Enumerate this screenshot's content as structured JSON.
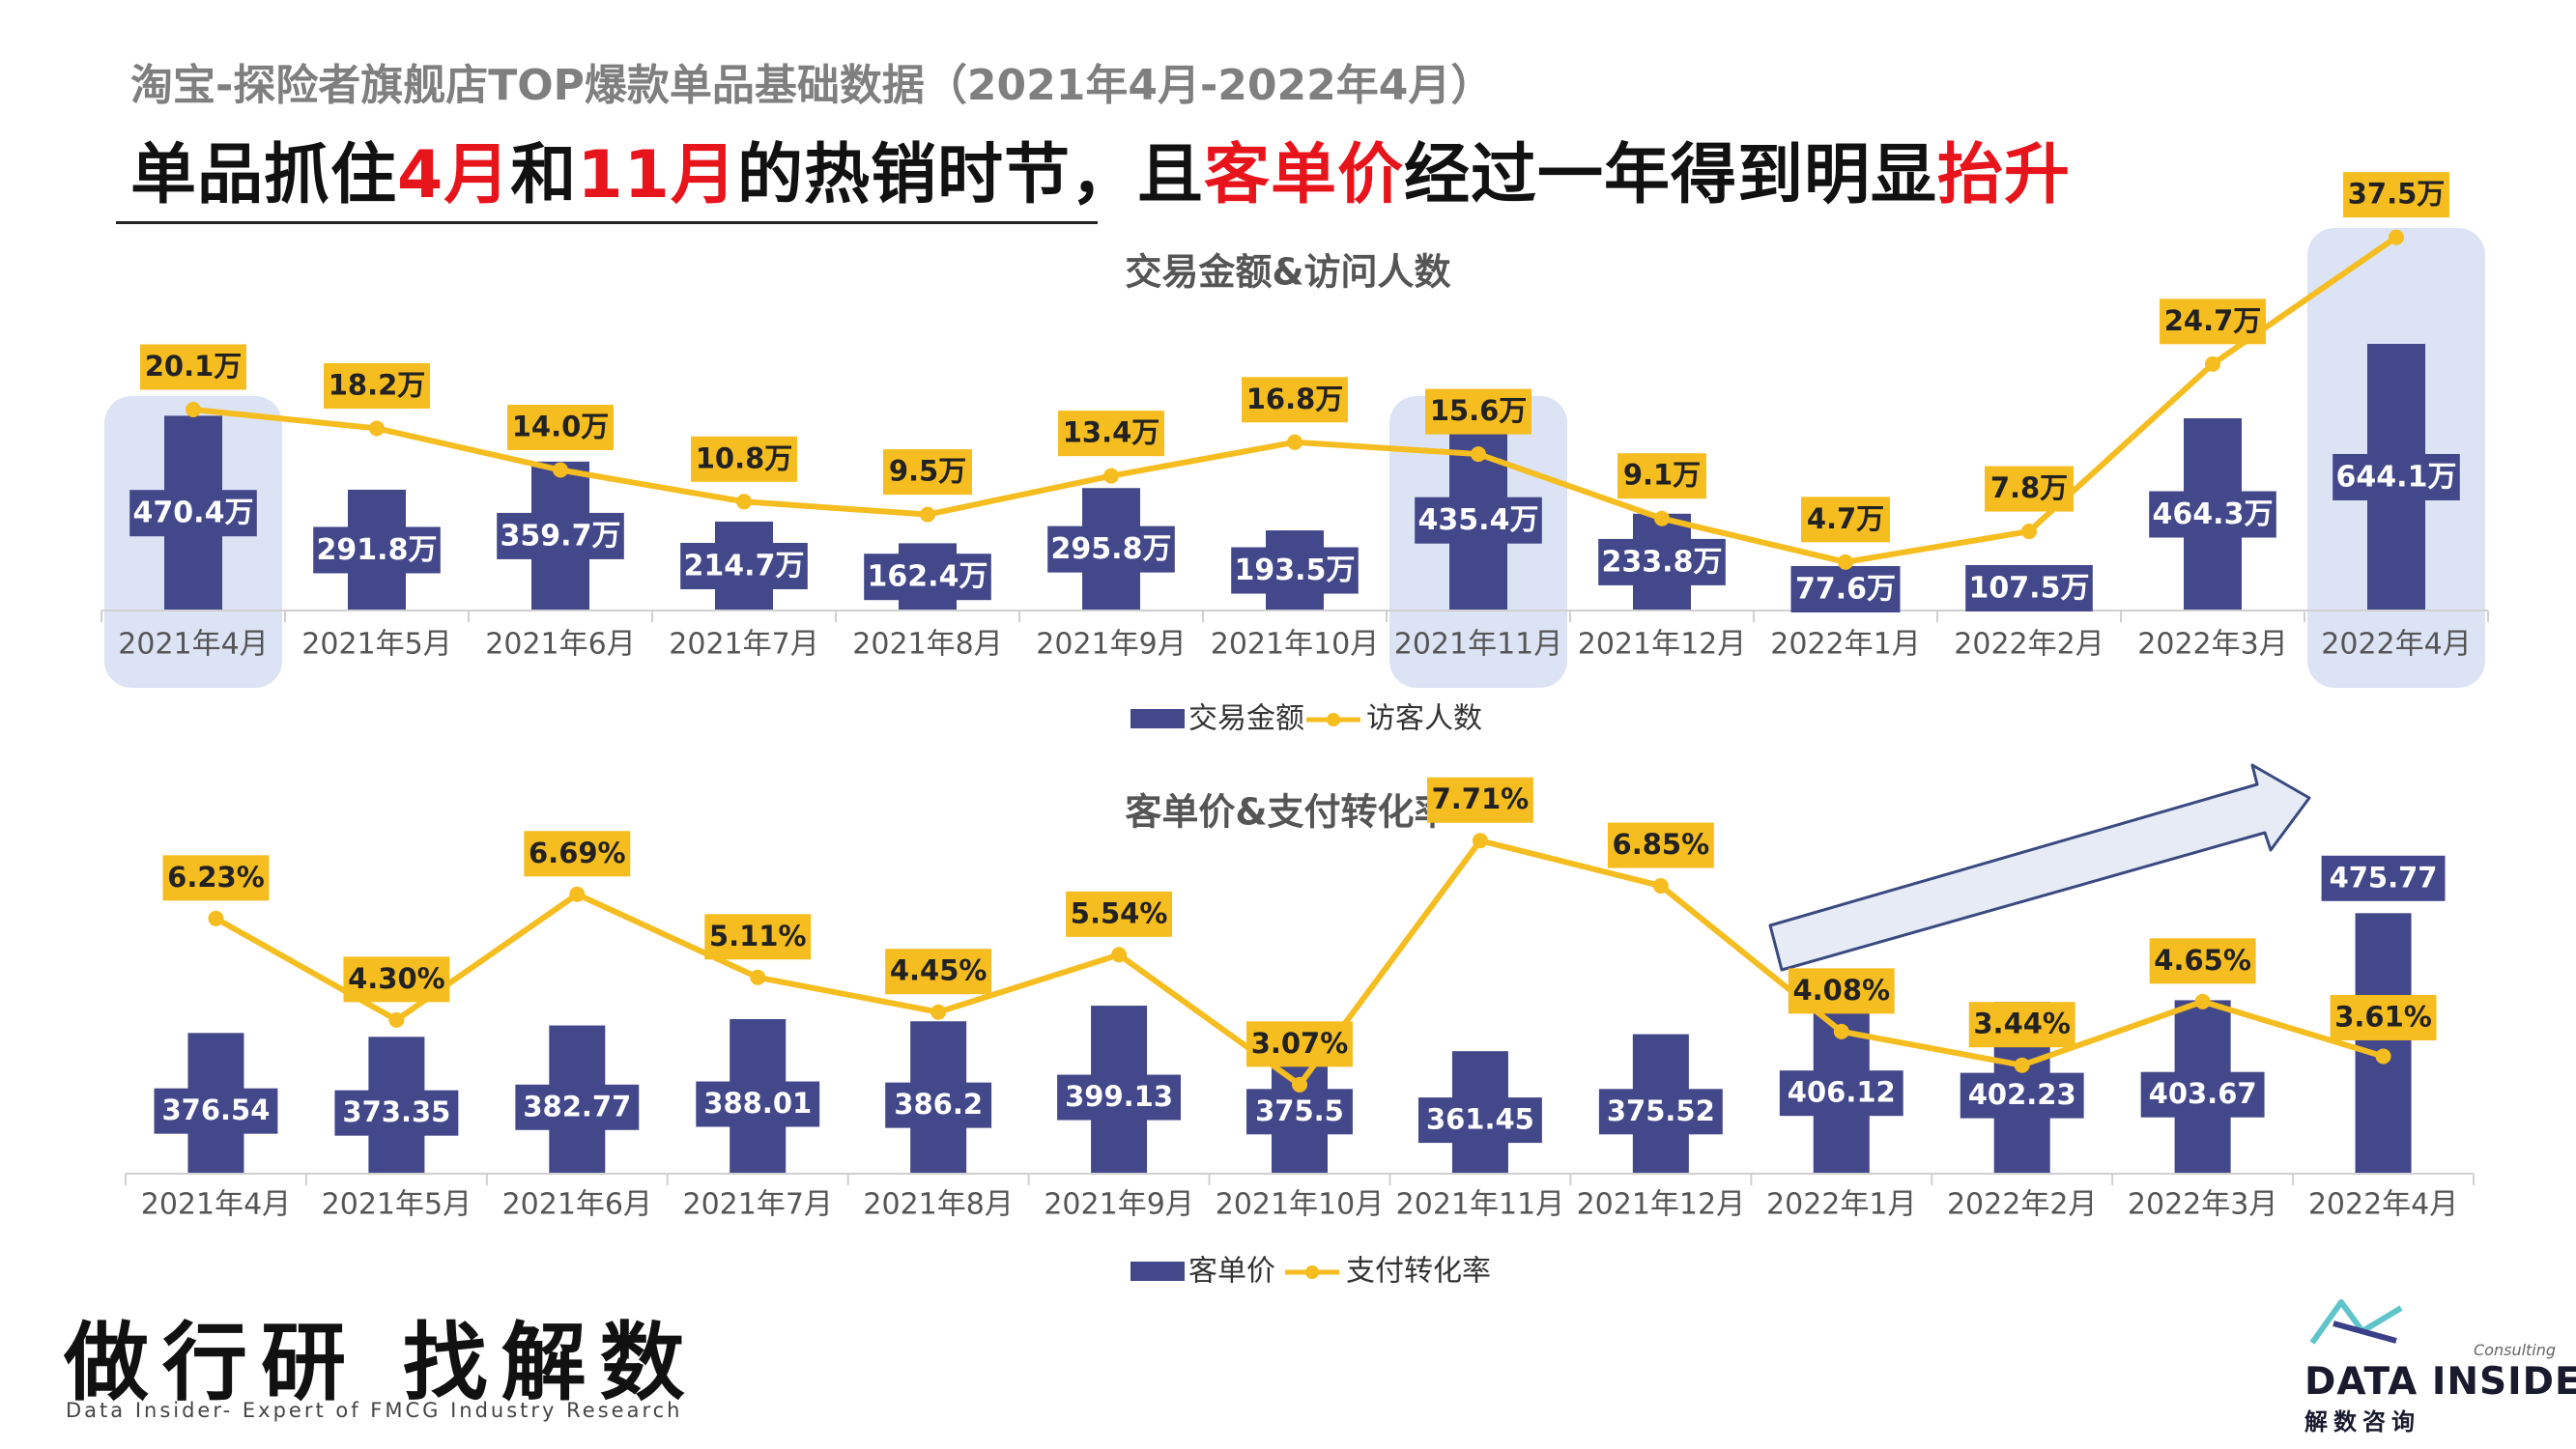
{
  "header": {
    "subtitle": "淘宝-探险者旗舰店TOP爆款单品基础数据（2021年4月-2022年4月）",
    "headline_parts": [
      "单品抓住",
      "4月",
      "和",
      "11月",
      "的热销时节，且",
      "客单价",
      "经过一年得到明显",
      "抬升"
    ]
  },
  "colors": {
    "bar": "#43488a",
    "line": "#f5bd1f",
    "label_bg_line": "#f5bd1f",
    "highlight": "#dbe3f4",
    "accent_red": "#e8141c"
  },
  "chart_data": [
    {
      "type": "bar+line",
      "title": "交易金额&访问人数",
      "categories": [
        "2021年4月",
        "2021年5月",
        "2021年6月",
        "2021年7月",
        "2021年8月",
        "2021年9月",
        "2021年10月",
        "2021年11月",
        "2021年12月",
        "2022年1月",
        "2022年2月",
        "2022年3月",
        "2022年4月"
      ],
      "series": [
        {
          "name": "交易金额",
          "kind": "bar",
          "values": [
            470.4,
            291.8,
            359.7,
            214.7,
            162.4,
            295.8,
            193.5,
            435.4,
            233.8,
            77.6,
            107.5,
            464.3,
            644.1
          ],
          "labels": [
            "470.4万",
            "291.8万",
            "359.7万",
            "214.7万",
            "162.4万",
            "295.8万",
            "193.5万",
            "435.4万",
            "233.8万",
            "77.6万",
            "107.5万",
            "464.3万",
            "644.1万"
          ]
        },
        {
          "name": "访客人数",
          "kind": "line",
          "values": [
            20.1,
            18.2,
            14.0,
            10.8,
            9.5,
            13.4,
            16.8,
            15.6,
            9.1,
            4.7,
            7.8,
            24.7,
            37.5
          ],
          "labels": [
            "20.1万",
            "18.2万",
            "14.0万",
            "10.8万",
            "9.5万",
            "13.4万",
            "16.8万",
            "15.6万",
            "9.1万",
            "4.7万",
            "7.8万",
            "24.7万",
            "37.5万"
          ]
        }
      ],
      "highlight_categories": [
        "2021年4月",
        "2021年11月",
        "2022年4月"
      ],
      "legend": "bottom"
    },
    {
      "type": "bar+line",
      "title": "客单价&支付转化率",
      "categories": [
        "2021年4月",
        "2021年5月",
        "2021年6月",
        "2021年7月",
        "2021年8月",
        "2021年9月",
        "2021年10月",
        "2021年11月",
        "2021年12月",
        "2022年1月",
        "2022年2月",
        "2022年3月",
        "2022年4月"
      ],
      "series": [
        {
          "name": "客单价",
          "kind": "bar",
          "values": [
            376.54,
            373.35,
            382.77,
            388.01,
            386.2,
            399.13,
            375.5,
            361.45,
            375.52,
            406.12,
            402.23,
            403.67,
            475.77
          ],
          "labels": [
            "376.54",
            "373.35",
            "382.77",
            "388.01",
            "386.2",
            "399.13",
            "375.5",
            "361.45",
            "375.52",
            "406.12",
            "402.23",
            "403.67",
            "475.77"
          ]
        },
        {
          "name": "支付转化率",
          "kind": "line",
          "values": [
            6.23,
            4.3,
            6.69,
            5.11,
            4.45,
            5.54,
            3.07,
            7.71,
            6.85,
            4.08,
            3.44,
            4.65,
            3.61
          ],
          "labels": [
            "6.23%",
            "4.30%",
            "6.69%",
            "5.11%",
            "4.45%",
            "5.54%",
            "3.07%",
            "7.71%",
            "6.85%",
            "4.08%",
            "3.44%",
            "4.65%",
            "3.61%"
          ]
        }
      ],
      "legend": "bottom",
      "annotation": "upward-trend-arrow"
    }
  ],
  "footer": {
    "slogan": "做行研 找解数",
    "tagline": "Data Insider- Expert of FMCG Industry Research",
    "brand_name": "DATA INSIDER",
    "brand_cn": "解数咨询",
    "brand_consult": "Consulting"
  }
}
